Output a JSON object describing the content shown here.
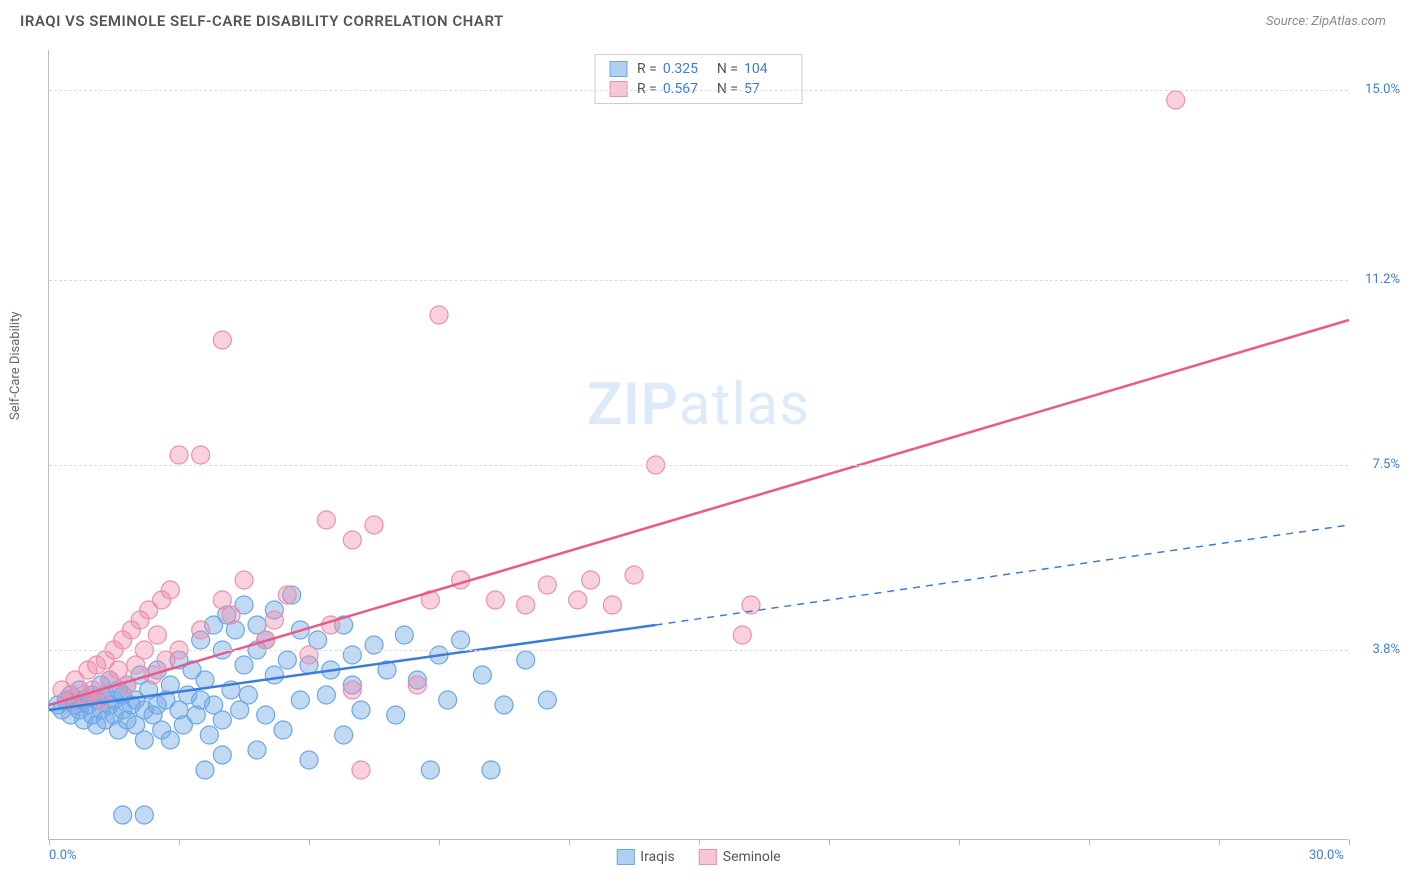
{
  "header": {
    "title": "IRAQI VS SEMINOLE SELF-CARE DISABILITY CORRELATION CHART",
    "source": "Source: ZipAtlas.com"
  },
  "watermark": {
    "zip": "ZIP",
    "atlas": "atlas"
  },
  "chart": {
    "type": "scatter",
    "ylabel": "Self-Care Disability",
    "background_color": "#ffffff",
    "grid_color": "#dddddd",
    "axis_color": "#bbbbbb",
    "value_color": "#3b7dd8",
    "xlim": [
      0,
      30
    ],
    "ylim": [
      0,
      15.8
    ],
    "x_ticks": [
      0,
      3,
      6,
      9,
      12,
      15,
      18,
      21,
      24,
      27,
      30
    ],
    "x_labels": {
      "0": "0.0%",
      "30": "30.0%"
    },
    "y_gridlines": [
      3.8,
      7.5,
      11.2,
      15.0
    ],
    "y_labels": [
      "3.8%",
      "7.5%",
      "11.2%",
      "15.0%"
    ],
    "legend_top": [
      {
        "swatch": "blue",
        "r_label": "R =",
        "r": "0.325",
        "n_label": "N =",
        "n": "104"
      },
      {
        "swatch": "pink",
        "r_label": "R =",
        "r": "0.567",
        "n_label": "N =",
        "n": "57"
      }
    ],
    "legend_bottom": [
      {
        "swatch": "blue",
        "label": "Iraqis"
      },
      {
        "swatch": "pink",
        "label": "Seminole"
      }
    ],
    "series": [
      {
        "name": "Iraqis",
        "marker_radius": 9,
        "fill": "rgba(120,170,230,0.45)",
        "stroke": "#6aa8e8",
        "line_color": "#3b7dd8",
        "line_width": 2.5,
        "trend_solid": {
          "x1": 0,
          "y1": 2.6,
          "x2": 14,
          "y2": 4.3
        },
        "trend_dash": {
          "x1": 14,
          "y1": 4.3,
          "x2": 30,
          "y2": 6.3
        },
        "points": [
          [
            0.2,
            2.7
          ],
          [
            0.3,
            2.6
          ],
          [
            0.4,
            2.8
          ],
          [
            0.5,
            2.9
          ],
          [
            0.5,
            2.5
          ],
          [
            0.6,
            2.7
          ],
          [
            0.7,
            2.6
          ],
          [
            0.7,
            3.0
          ],
          [
            0.8,
            2.8
          ],
          [
            0.8,
            2.4
          ],
          [
            0.9,
            2.7
          ],
          [
            1.0,
            2.9
          ],
          [
            1.0,
            2.5
          ],
          [
            1.1,
            2.8
          ],
          [
            1.1,
            2.3
          ],
          [
            1.2,
            2.6
          ],
          [
            1.2,
            3.1
          ],
          [
            1.3,
            2.9
          ],
          [
            1.3,
            2.4
          ],
          [
            1.4,
            2.7
          ],
          [
            1.4,
            3.2
          ],
          [
            1.5,
            2.5
          ],
          [
            1.5,
            2.8
          ],
          [
            1.6,
            2.2
          ],
          [
            1.6,
            3.0
          ],
          [
            1.7,
            2.6
          ],
          [
            1.7,
            2.9
          ],
          [
            1.8,
            2.4
          ],
          [
            1.8,
            3.1
          ],
          [
            1.9,
            2.7
          ],
          [
            2.0,
            2.3
          ],
          [
            2.0,
            2.8
          ],
          [
            2.1,
            3.3
          ],
          [
            2.2,
            2.6
          ],
          [
            2.2,
            2.0
          ],
          [
            2.3,
            3.0
          ],
          [
            2.4,
            2.5
          ],
          [
            2.5,
            2.7
          ],
          [
            2.5,
            3.4
          ],
          [
            2.6,
            2.2
          ],
          [
            2.7,
            2.8
          ],
          [
            2.8,
            3.1
          ],
          [
            2.8,
            2.0
          ],
          [
            3.0,
            2.6
          ],
          [
            3.0,
            3.6
          ],
          [
            3.1,
            2.3
          ],
          [
            3.2,
            2.9
          ],
          [
            3.3,
            3.4
          ],
          [
            3.4,
            2.5
          ],
          [
            3.5,
            4.0
          ],
          [
            3.5,
            2.8
          ],
          [
            3.6,
            3.2
          ],
          [
            3.7,
            2.1
          ],
          [
            3.8,
            4.3
          ],
          [
            3.8,
            2.7
          ],
          [
            4.0,
            3.8
          ],
          [
            4.0,
            2.4
          ],
          [
            4.1,
            4.5
          ],
          [
            4.2,
            3.0
          ],
          [
            4.3,
            4.2
          ],
          [
            4.4,
            2.6
          ],
          [
            4.5,
            3.5
          ],
          [
            4.5,
            4.7
          ],
          [
            4.6,
            2.9
          ],
          [
            4.8,
            3.8
          ],
          [
            4.8,
            4.3
          ],
          [
            5.0,
            2.5
          ],
          [
            5.0,
            4.0
          ],
          [
            5.2,
            3.3
          ],
          [
            5.2,
            4.6
          ],
          [
            5.4,
            2.2
          ],
          [
            5.5,
            3.6
          ],
          [
            5.6,
            4.9
          ],
          [
            5.8,
            2.8
          ],
          [
            5.8,
            4.2
          ],
          [
            6.0,
            3.5
          ],
          [
            6.0,
            1.6
          ],
          [
            6.2,
            4.0
          ],
          [
            6.4,
            2.9
          ],
          [
            6.5,
            3.4
          ],
          [
            6.8,
            4.3
          ],
          [
            7.0,
            3.1
          ],
          [
            7.2,
            2.6
          ],
          [
            7.5,
            3.9
          ],
          [
            7.8,
            3.4
          ],
          [
            8.0,
            2.5
          ],
          [
            8.2,
            4.1
          ],
          [
            8.5,
            3.2
          ],
          [
            8.8,
            1.4
          ],
          [
            9.0,
            3.7
          ],
          [
            9.2,
            2.8
          ],
          [
            9.5,
            4.0
          ],
          [
            10.0,
            3.3
          ],
          [
            10.2,
            1.4
          ],
          [
            10.5,
            2.7
          ],
          [
            11.0,
            3.6
          ],
          [
            11.5,
            2.8
          ],
          [
            1.7,
            0.5
          ],
          [
            2.2,
            0.5
          ],
          [
            3.6,
            1.4
          ],
          [
            4.0,
            1.7
          ],
          [
            4.8,
            1.8
          ],
          [
            6.8,
            2.1
          ],
          [
            7.0,
            3.7
          ]
        ]
      },
      {
        "name": "Seminole",
        "marker_radius": 9,
        "fill": "rgba(240,140,170,0.40)",
        "stroke": "#ec8fb0",
        "line_color": "#e85a8a",
        "line_width": 2.5,
        "trend_solid": {
          "x1": 0,
          "y1": 2.7,
          "x2": 30,
          "y2": 10.4
        },
        "trend_dash": null,
        "points": [
          [
            0.3,
            3.0
          ],
          [
            0.5,
            2.8
          ],
          [
            0.6,
            3.2
          ],
          [
            0.8,
            2.9
          ],
          [
            0.9,
            3.4
          ],
          [
            1.0,
            3.0
          ],
          [
            1.1,
            3.5
          ],
          [
            1.2,
            2.8
          ],
          [
            1.3,
            3.6
          ],
          [
            1.4,
            3.2
          ],
          [
            1.5,
            3.8
          ],
          [
            1.6,
            3.4
          ],
          [
            1.7,
            4.0
          ],
          [
            1.8,
            3.1
          ],
          [
            1.9,
            4.2
          ],
          [
            2.0,
            3.5
          ],
          [
            2.1,
            4.4
          ],
          [
            2.2,
            3.8
          ],
          [
            2.3,
            4.6
          ],
          [
            2.4,
            3.3
          ],
          [
            2.5,
            4.1
          ],
          [
            2.6,
            4.8
          ],
          [
            2.7,
            3.6
          ],
          [
            2.8,
            5.0
          ],
          [
            3.0,
            3.8
          ],
          [
            3.0,
            7.7
          ],
          [
            3.5,
            4.2
          ],
          [
            3.5,
            7.7
          ],
          [
            4.0,
            4.8
          ],
          [
            4.0,
            10.0
          ],
          [
            4.2,
            4.5
          ],
          [
            4.5,
            5.2
          ],
          [
            5.0,
            4.0
          ],
          [
            5.2,
            4.4
          ],
          [
            5.5,
            4.9
          ],
          [
            6.0,
            3.7
          ],
          [
            6.4,
            6.4
          ],
          [
            6.5,
            4.3
          ],
          [
            7.0,
            6.0
          ],
          [
            7.0,
            3.0
          ],
          [
            7.2,
            1.4
          ],
          [
            7.5,
            6.3
          ],
          [
            8.5,
            3.1
          ],
          [
            8.8,
            4.8
          ],
          [
            9.0,
            10.5
          ],
          [
            9.5,
            5.2
          ],
          [
            10.3,
            4.8
          ],
          [
            11.0,
            4.7
          ],
          [
            11.5,
            5.1
          ],
          [
            12.2,
            4.8
          ],
          [
            12.5,
            5.2
          ],
          [
            13.0,
            4.7
          ],
          [
            13.5,
            5.3
          ],
          [
            14.0,
            7.5
          ],
          [
            16.0,
            4.1
          ],
          [
            16.2,
            4.7
          ],
          [
            26.0,
            14.8
          ]
        ]
      }
    ]
  }
}
